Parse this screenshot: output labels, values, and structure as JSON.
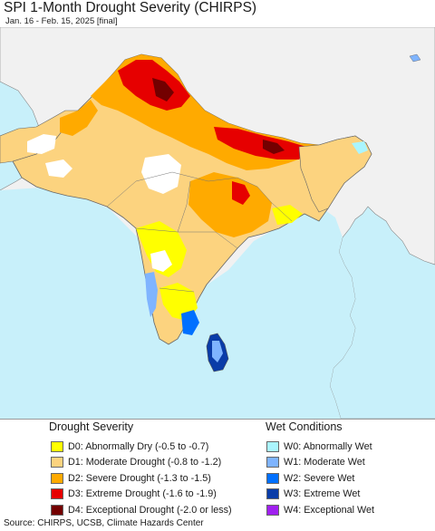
{
  "header": {
    "title": "SPI 1-Month Drought Severity (CHIRPS)",
    "subtitle": "Jan. 16 - Feb. 15, 2025 [final]"
  },
  "map": {
    "colors": {
      "land_bg": "#f1f1f1",
      "water": "#c8f0fa",
      "border": "#555555"
    }
  },
  "legend": {
    "drought": {
      "title": "Drought Severity",
      "items": [
        {
          "label": "D0: Abnormally Dry (-0.5 to -0.7)",
          "color": "#ffff00"
        },
        {
          "label": "D1: Moderate Drought (-0.8 to -1.2)",
          "color": "#fcd37f"
        },
        {
          "label": "D2: Severe Drought (-1.3 to -1.5)",
          "color": "#ffaa00"
        },
        {
          "label": "D3: Extreme Drought (-1.6 to -1.9)",
          "color": "#e60000"
        },
        {
          "label": "D4: Exceptional Drought (-2.0 or less)",
          "color": "#730000"
        }
      ]
    },
    "wet": {
      "title": "Wet Conditions",
      "items": [
        {
          "label": "W0: Abnormally Wet",
          "color": "#aaf5ff"
        },
        {
          "label": "W1: Moderate Wet",
          "color": "#7fb4ff"
        },
        {
          "label": "W2: Severe Wet",
          "color": "#0070ff"
        },
        {
          "label": "W3: Extreme Wet",
          "color": "#0a3ca8"
        },
        {
          "label": "W4: Exceptional Wet",
          "color": "#a020f0"
        }
      ]
    }
  },
  "footer": {
    "source": "Source: CHIRPS, UCSB, Climate Hazards Center"
  }
}
